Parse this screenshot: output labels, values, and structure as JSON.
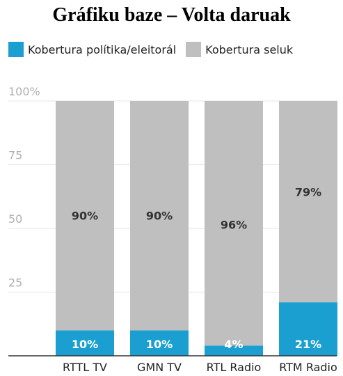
{
  "chart_data": {
    "type": "bar",
    "stacked": true,
    "title": "Gráfiku baze – Volta daruak",
    "categories": [
      "RTTL TV",
      "GMN TV",
      "RTL Radio",
      "RTM Radio"
    ],
    "series": [
      {
        "name": "Kobertura polítika/eleitorál",
        "color": "#1a9fd0",
        "values": [
          10,
          10,
          4,
          21
        ],
        "labels": [
          "10%",
          "10%",
          "4%",
          "21%"
        ]
      },
      {
        "name": "Kobertura seluk",
        "color": "#bfbfbf",
        "values": [
          90,
          90,
          96,
          79
        ],
        "labels": [
          "90%",
          "90%",
          "96%",
          "79%"
        ]
      }
    ],
    "ylim": [
      0,
      100
    ],
    "yticks": [
      {
        "value": 100,
        "label": "100%"
      },
      {
        "value": 75,
        "label": "75"
      },
      {
        "value": 50,
        "label": "50"
      },
      {
        "value": 25,
        "label": "25"
      }
    ],
    "grid": true,
    "legend_position": "top-left"
  }
}
